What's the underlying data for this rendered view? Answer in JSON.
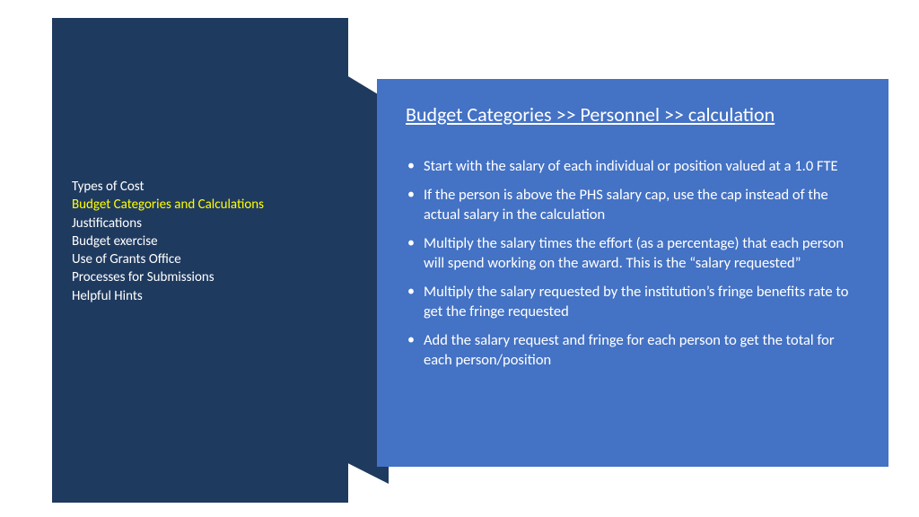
{
  "colors": {
    "left_panel_bg": "#1f3a5f",
    "right_panel_bg": "#4472c4",
    "nav_text": "#ffffff",
    "nav_active": "#ffff00",
    "content_text": "#ffffff"
  },
  "nav": {
    "items": [
      {
        "label": "Types of Cost",
        "active": false
      },
      {
        "label": "Budget Categories and Calculations",
        "active": true
      },
      {
        "label": "Justifications",
        "active": false
      },
      {
        "label": "Budget exercise",
        "active": false
      },
      {
        "label": "Use of Grants Office",
        "active": false
      },
      {
        "label": "Processes for Submissions",
        "active": false
      },
      {
        "label": "Helpful Hints",
        "active": false
      }
    ]
  },
  "content": {
    "title": "Budget Categories >> Personnel >> calculation",
    "bullets": [
      "Start with the salary of each individual or position valued at a 1.0 FTE",
      "If the person is above the PHS salary cap, use the cap instead of the actual salary in the calculation",
      "Multiply the salary times the effort (as a percentage) that each person will spend working on the award. This is the “salary requested”",
      "Multiply the salary requested by the institution’s fringe benefits rate to get the fringe requested",
      "Add the salary request and fringe for each person to get the total for each person/position"
    ]
  }
}
